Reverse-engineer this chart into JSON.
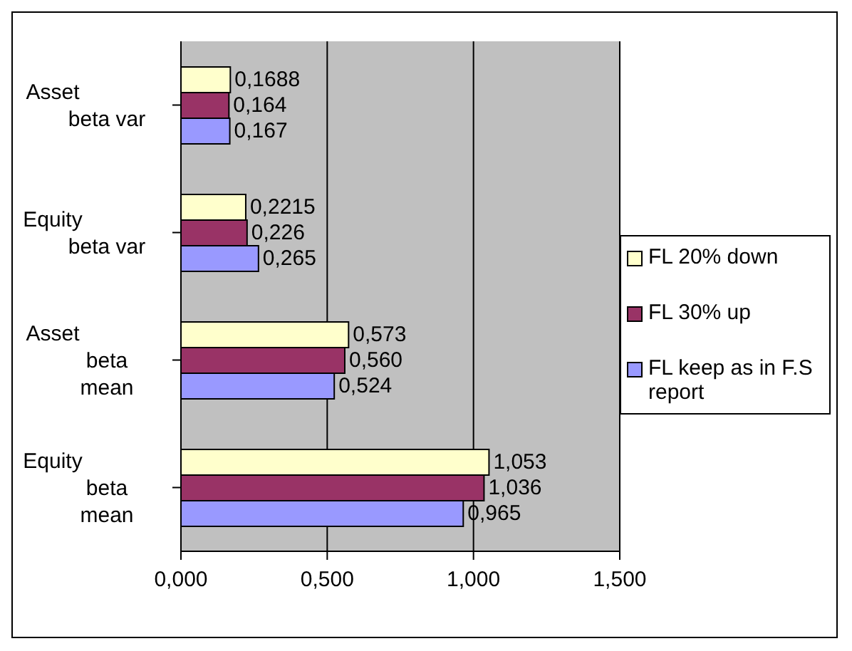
{
  "chart_data": {
    "type": "bar",
    "orientation": "horizontal",
    "categories": [
      "Asset beta var",
      "Equity beta var",
      "Asset beta mean",
      "Equity beta mean"
    ],
    "series": [
      {
        "name": "FL 20% down",
        "color": "#ffffcc",
        "values": [
          0.1688,
          0.2215,
          0.573,
          1.053
        ],
        "value_labels": [
          "0,1688",
          "0,2215",
          "0,573",
          "1,053"
        ]
      },
      {
        "name": "FL 30% up",
        "color": "#993366",
        "values": [
          0.164,
          0.226,
          0.56,
          1.036
        ],
        "value_labels": [
          "0,164",
          "0,226",
          "0,560",
          "1,036"
        ]
      },
      {
        "name": "FL keep as in F.S report",
        "color": "#9999ff",
        "values": [
          0.167,
          0.265,
          0.524,
          0.965
        ],
        "value_labels": [
          "0,167",
          "0,265",
          "0,524",
          "0,965"
        ]
      }
    ],
    "xlim": [
      0,
      1.5
    ],
    "xticks": [
      {
        "value": 0,
        "label": "0,000"
      },
      {
        "value": 0.5,
        "label": "0,500"
      },
      {
        "value": 1,
        "label": "1,000"
      },
      {
        "value": 1.5,
        "label": "1,500"
      }
    ],
    "grid": "x",
    "legend": "right"
  }
}
